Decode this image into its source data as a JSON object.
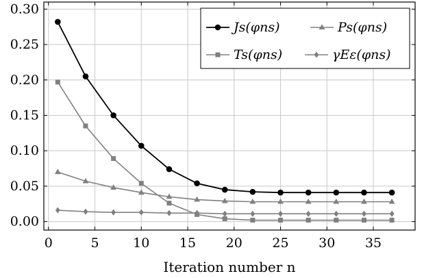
{
  "chart_data": {
    "type": "line",
    "xlabel": "Iteration number n",
    "ylabel": "",
    "xlim": [
      -0.5,
      39.5
    ],
    "ylim": [
      -0.012,
      0.31
    ],
    "xticks": [
      0,
      5,
      10,
      15,
      20,
      25,
      30,
      35
    ],
    "yticks": [
      0.0,
      0.05,
      0.1,
      0.15,
      0.2,
      0.25,
      0.3
    ],
    "ytick_labels": [
      "0.00",
      "0.05",
      "0.10",
      "0.15",
      "0.20",
      "0.25",
      "0.30"
    ],
    "grid": true,
    "legend_position": "top-right",
    "x": [
      1,
      4,
      7,
      10,
      13,
      16,
      19,
      22,
      25,
      28,
      31,
      34,
      37
    ],
    "series": [
      {
        "name": "Js(φns)",
        "color": "#000000",
        "marker": "circle",
        "values": [
          0.282,
          0.205,
          0.15,
          0.107,
          0.074,
          0.054,
          0.045,
          0.042,
          0.041,
          0.041,
          0.041,
          0.041,
          0.041
        ]
      },
      {
        "name": "Ps(φns)",
        "color": "#808080",
        "marker": "triangle",
        "values": [
          0.07,
          0.057,
          0.048,
          0.041,
          0.035,
          0.031,
          0.029,
          0.028,
          0.028,
          0.028,
          0.028,
          0.028,
          0.028
        ]
      },
      {
        "name": "Ts(φns)",
        "color": "#808080",
        "marker": "square",
        "values": [
          0.197,
          0.135,
          0.089,
          0.054,
          0.026,
          0.01,
          0.004,
          0.002,
          0.002,
          0.002,
          0.002,
          0.002,
          0.002
        ]
      },
      {
        "name": "γEε(φns)",
        "color": "#808080",
        "marker": "diamond",
        "values": [
          0.016,
          0.014,
          0.013,
          0.013,
          0.012,
          0.012,
          0.011,
          0.011,
          0.011,
          0.011,
          0.011,
          0.011,
          0.011
        ]
      }
    ]
  }
}
